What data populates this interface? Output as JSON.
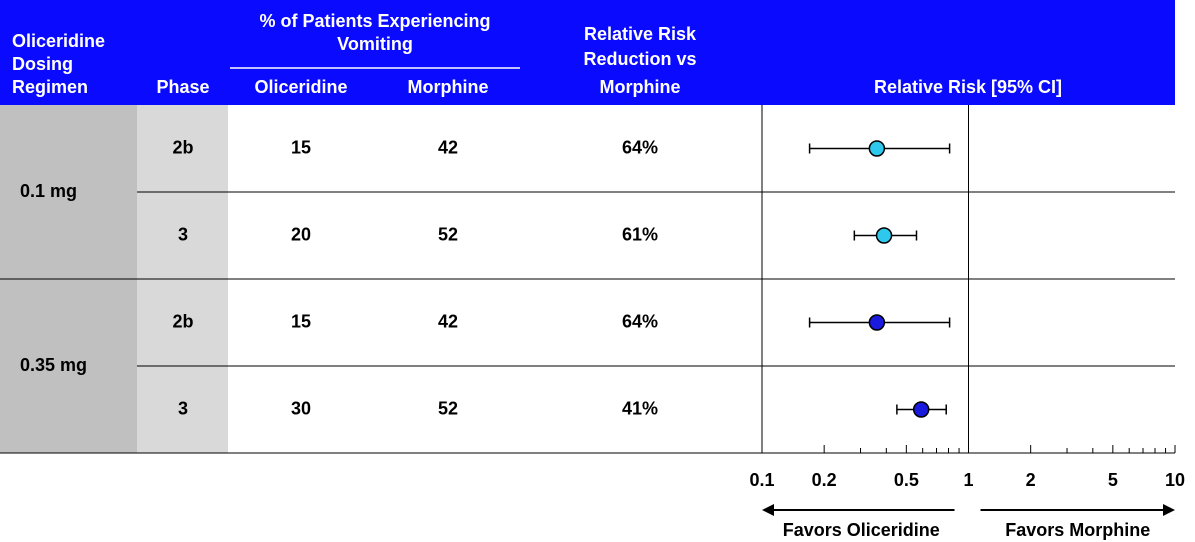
{
  "header": {
    "regimen": [
      "Oliceridine",
      "Dosing",
      "Regimen"
    ],
    "phase": "Phase",
    "vomiting": [
      "% of Patients Experiencing",
      "Vomiting"
    ],
    "oliceridine": "Oliceridine",
    "morphine": "Morphine",
    "rrr": [
      "Relative Risk",
      "Reduction vs",
      "Morphine"
    ]
  },
  "table": {
    "groups": [
      {
        "regimen": "0.1 mg",
        "rows": [
          {
            "phase": "2b",
            "oliceridine": 15,
            "morphine": 42,
            "rrr": "64%"
          },
          {
            "phase": "3",
            "oliceridine": 20,
            "morphine": 52,
            "rrr": "61%"
          }
        ]
      },
      {
        "regimen": "0.35 mg",
        "rows": [
          {
            "phase": "2b",
            "oliceridine": 15,
            "morphine": 42,
            "rrr": "64%"
          },
          {
            "phase": "3",
            "oliceridine": 30,
            "morphine": 52,
            "rrr": "41%"
          }
        ]
      }
    ]
  },
  "chart_data": {
    "type": "forest",
    "title": "Relative Risk [95% CI]",
    "log": true,
    "xlim": [
      0.1,
      10
    ],
    "xticks": [
      0.1,
      0.2,
      0.5,
      1,
      2,
      5,
      10
    ],
    "xminorticks": [
      0.3,
      0.4,
      0.6,
      0.7,
      0.8,
      0.9,
      3,
      4,
      6,
      7,
      8,
      9
    ],
    "reference": 1,
    "points": [
      {
        "value": 0.36,
        "ci_low": 0.17,
        "ci_high": 0.81,
        "color": "#2ec8ec"
      },
      {
        "value": 0.39,
        "ci_low": 0.28,
        "ci_high": 0.56,
        "color": "#2ec8ec"
      },
      {
        "value": 0.36,
        "ci_low": 0.17,
        "ci_high": 0.81,
        "color": "#1a1adf"
      },
      {
        "value": 0.59,
        "ci_low": 0.45,
        "ci_high": 0.78,
        "color": "#1a1adf"
      }
    ],
    "annotations": [
      "Favors Oliceridine",
      "Favors Morphine"
    ]
  }
}
